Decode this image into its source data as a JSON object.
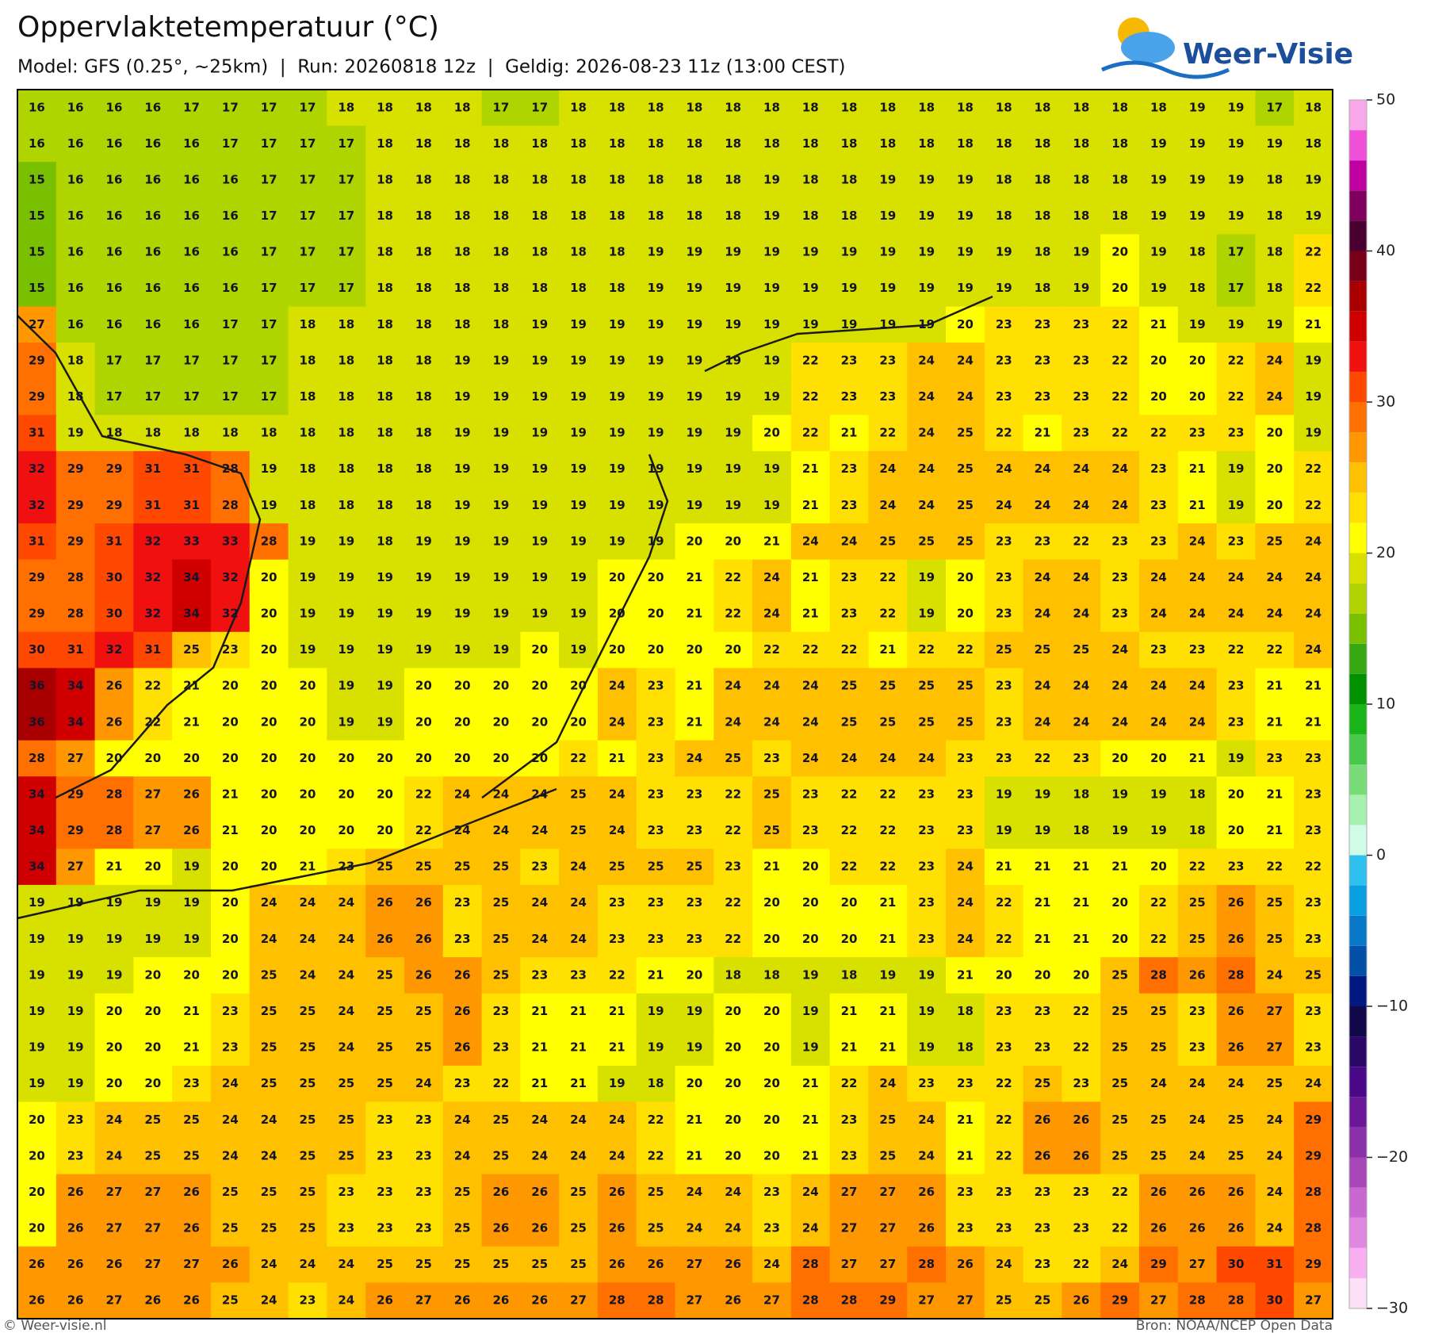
{
  "chart_data": {
    "type": "heatmap",
    "title": "Oppervlaktetemperatuur (°C)",
    "subtitle": "Model: GFS (0.25°, ~25km)  |  Run: 20260818 12z  |  Geldig: 2026-08-23 11z (13:00 CEST)",
    "logo": "Weer-Visie",
    "source_left": "© Weer-visie.nl",
    "source_right": "Bron: NOAA/NCEP Open Data",
    "values": [
      [
        16,
        16,
        16,
        16,
        17,
        17,
        17,
        17,
        18,
        18,
        18,
        18,
        17,
        17,
        18,
        18,
        18,
        18,
        18,
        18,
        18,
        18,
        18,
        18,
        18,
        18,
        18,
        18,
        18,
        18,
        19,
        19,
        17,
        18
      ],
      [
        16,
        16,
        16,
        16,
        16,
        17,
        17,
        17,
        17,
        18,
        18,
        18,
        18,
        18,
        18,
        18,
        18,
        18,
        18,
        18,
        18,
        18,
        18,
        18,
        18,
        18,
        18,
        18,
        18,
        19,
        19,
        19,
        19,
        18
      ],
      [
        15,
        16,
        16,
        16,
        16,
        16,
        17,
        17,
        17,
        18,
        18,
        18,
        18,
        18,
        18,
        18,
        18,
        18,
        18,
        19,
        18,
        18,
        19,
        19,
        19,
        18,
        18,
        18,
        18,
        19,
        19,
        19,
        18,
        19
      ],
      [
        15,
        16,
        16,
        16,
        16,
        16,
        17,
        17,
        17,
        18,
        18,
        18,
        18,
        18,
        18,
        18,
        18,
        18,
        18,
        19,
        18,
        18,
        19,
        19,
        19,
        18,
        18,
        18,
        18,
        19,
        19,
        19,
        18,
        19
      ],
      [
        15,
        16,
        16,
        16,
        16,
        16,
        17,
        17,
        17,
        18,
        18,
        18,
        18,
        18,
        18,
        18,
        19,
        19,
        19,
        19,
        19,
        19,
        19,
        19,
        19,
        19,
        18,
        19,
        20,
        19,
        18,
        17,
        18,
        22
      ],
      [
        15,
        16,
        16,
        16,
        16,
        16,
        17,
        17,
        17,
        18,
        18,
        18,
        18,
        18,
        18,
        18,
        19,
        19,
        19,
        19,
        19,
        19,
        19,
        19,
        19,
        19,
        18,
        19,
        20,
        19,
        18,
        17,
        18,
        22
      ],
      [
        27,
        16,
        16,
        16,
        16,
        17,
        17,
        18,
        18,
        18,
        18,
        18,
        18,
        19,
        19,
        19,
        19,
        19,
        19,
        19,
        19,
        19,
        19,
        19,
        20,
        23,
        23,
        23,
        22,
        21,
        19,
        19,
        19,
        21
      ],
      [
        29,
        18,
        17,
        17,
        17,
        17,
        17,
        18,
        18,
        18,
        18,
        19,
        19,
        19,
        19,
        19,
        19,
        19,
        19,
        19,
        22,
        23,
        23,
        24,
        24,
        23,
        23,
        23,
        22,
        20,
        20,
        22,
        24,
        19
      ],
      [
        29,
        18,
        17,
        17,
        17,
        17,
        17,
        18,
        18,
        18,
        18,
        19,
        19,
        19,
        19,
        19,
        19,
        19,
        19,
        19,
        22,
        23,
        23,
        24,
        24,
        23,
        23,
        23,
        22,
        20,
        20,
        22,
        24,
        19
      ],
      [
        31,
        19,
        18,
        18,
        18,
        18,
        18,
        18,
        18,
        18,
        18,
        19,
        19,
        19,
        19,
        19,
        19,
        19,
        19,
        20,
        22,
        21,
        22,
        24,
        25,
        22,
        21,
        23,
        22,
        22,
        23,
        23,
        20,
        19
      ],
      [
        32,
        29,
        29,
        31,
        31,
        28,
        19,
        18,
        18,
        18,
        18,
        19,
        19,
        19,
        19,
        19,
        19,
        19,
        19,
        19,
        21,
        23,
        24,
        24,
        25,
        24,
        24,
        24,
        24,
        23,
        21,
        19,
        20,
        22
      ],
      [
        32,
        29,
        29,
        31,
        31,
        28,
        19,
        18,
        18,
        18,
        18,
        19,
        19,
        19,
        19,
        19,
        19,
        19,
        19,
        19,
        21,
        23,
        24,
        24,
        25,
        24,
        24,
        24,
        24,
        23,
        21,
        19,
        20,
        22
      ],
      [
        31,
        29,
        31,
        32,
        33,
        33,
        28,
        19,
        19,
        18,
        19,
        19,
        19,
        19,
        19,
        19,
        19,
        20,
        20,
        21,
        24,
        24,
        25,
        25,
        25,
        23,
        23,
        22,
        23,
        23,
        24,
        23,
        25,
        24
      ],
      [
        29,
        28,
        30,
        32,
        34,
        32,
        20,
        19,
        19,
        19,
        19,
        19,
        19,
        19,
        19,
        20,
        20,
        21,
        22,
        24,
        21,
        23,
        22,
        19,
        20,
        23,
        24,
        24,
        23,
        24,
        24,
        24,
        24,
        24
      ],
      [
        29,
        28,
        30,
        32,
        34,
        32,
        20,
        19,
        19,
        19,
        19,
        19,
        19,
        19,
        19,
        20,
        20,
        21,
        22,
        24,
        21,
        23,
        22,
        19,
        20,
        23,
        24,
        24,
        23,
        24,
        24,
        24,
        24,
        24
      ],
      [
        30,
        31,
        32,
        31,
        25,
        23,
        20,
        19,
        19,
        19,
        19,
        19,
        19,
        20,
        19,
        20,
        20,
        20,
        20,
        22,
        22,
        22,
        21,
        22,
        22,
        25,
        25,
        25,
        24,
        23,
        23,
        22,
        22,
        24
      ],
      [
        36,
        34,
        26,
        22,
        21,
        20,
        20,
        20,
        19,
        19,
        20,
        20,
        20,
        20,
        20,
        24,
        23,
        21,
        24,
        24,
        24,
        25,
        25,
        25,
        25,
        23,
        24,
        24,
        24,
        24,
        24,
        23,
        21,
        21
      ],
      [
        36,
        34,
        26,
        22,
        21,
        20,
        20,
        20,
        19,
        19,
        20,
        20,
        20,
        20,
        20,
        24,
        23,
        21,
        24,
        24,
        24,
        25,
        25,
        25,
        25,
        23,
        24,
        24,
        24,
        24,
        24,
        23,
        21,
        21
      ],
      [
        28,
        27,
        20,
        20,
        20,
        20,
        20,
        20,
        20,
        20,
        20,
        20,
        20,
        20,
        22,
        21,
        23,
        24,
        25,
        23,
        24,
        24,
        24,
        24,
        23,
        23,
        22,
        23,
        20,
        20,
        21,
        19,
        23,
        23
      ],
      [
        34,
        29,
        28,
        27,
        26,
        21,
        20,
        20,
        20,
        20,
        22,
        24,
        24,
        24,
        25,
        24,
        23,
        23,
        22,
        25,
        23,
        22,
        22,
        23,
        23,
        19,
        19,
        18,
        19,
        19,
        18,
        20,
        21,
        23
      ],
      [
        34,
        29,
        28,
        27,
        26,
        21,
        20,
        20,
        20,
        20,
        22,
        24,
        24,
        24,
        25,
        24,
        23,
        23,
        22,
        25,
        23,
        22,
        22,
        23,
        23,
        19,
        19,
        18,
        19,
        19,
        18,
        20,
        21,
        23
      ],
      [
        34,
        27,
        21,
        20,
        19,
        20,
        20,
        21,
        23,
        25,
        25,
        25,
        25,
        23,
        24,
        25,
        25,
        25,
        23,
        21,
        20,
        22,
        22,
        23,
        24,
        21,
        21,
        21,
        21,
        20,
        22,
        23,
        22,
        22
      ],
      [
        19,
        19,
        19,
        19,
        19,
        20,
        24,
        24,
        24,
        26,
        26,
        23,
        25,
        24,
        24,
        23,
        23,
        23,
        22,
        20,
        20,
        20,
        21,
        23,
        24,
        22,
        21,
        21,
        20,
        22,
        25,
        26,
        25,
        23
      ],
      [
        19,
        19,
        19,
        19,
        19,
        20,
        24,
        24,
        24,
        26,
        26,
        23,
        25,
        24,
        24,
        23,
        23,
        23,
        22,
        20,
        20,
        20,
        21,
        23,
        24,
        22,
        21,
        21,
        20,
        22,
        25,
        26,
        25,
        23
      ],
      [
        19,
        19,
        19,
        20,
        20,
        20,
        25,
        24,
        24,
        25,
        26,
        26,
        25,
        23,
        23,
        22,
        21,
        20,
        18,
        18,
        19,
        18,
        19,
        19,
        21,
        20,
        20,
        20,
        25,
        28,
        26,
        28,
        24,
        25
      ],
      [
        19,
        19,
        20,
        20,
        21,
        23,
        25,
        25,
        24,
        25,
        25,
        26,
        23,
        21,
        21,
        21,
        19,
        19,
        20,
        20,
        19,
        21,
        21,
        19,
        18,
        23,
        23,
        22,
        25,
        25,
        23,
        26,
        27,
        23
      ],
      [
        19,
        19,
        20,
        20,
        21,
        23,
        25,
        25,
        24,
        25,
        25,
        26,
        23,
        21,
        21,
        21,
        19,
        19,
        20,
        20,
        19,
        21,
        21,
        19,
        18,
        23,
        23,
        22,
        25,
        25,
        23,
        26,
        27,
        23
      ],
      [
        19,
        19,
        20,
        20,
        23,
        24,
        25,
        25,
        25,
        25,
        24,
        23,
        22,
        21,
        21,
        19,
        18,
        20,
        20,
        20,
        21,
        22,
        24,
        23,
        23,
        22,
        25,
        23,
        25,
        24,
        24,
        24,
        25,
        24
      ],
      [
        20,
        23,
        24,
        25,
        25,
        24,
        24,
        25,
        25,
        23,
        23,
        24,
        25,
        24,
        24,
        24,
        22,
        21,
        20,
        20,
        21,
        23,
        25,
        24,
        21,
        22,
        26,
        26,
        25,
        25,
        24,
        25,
        24,
        29
      ],
      [
        20,
        23,
        24,
        25,
        25,
        24,
        24,
        25,
        25,
        23,
        23,
        24,
        25,
        24,
        24,
        24,
        22,
        21,
        20,
        20,
        21,
        23,
        25,
        24,
        21,
        22,
        26,
        26,
        25,
        25,
        24,
        25,
        24,
        29
      ],
      [
        20,
        26,
        27,
        27,
        26,
        25,
        25,
        25,
        23,
        23,
        23,
        25,
        26,
        26,
        25,
        26,
        25,
        24,
        24,
        23,
        24,
        27,
        27,
        26,
        23,
        23,
        23,
        23,
        22,
        26,
        26,
        26,
        24,
        28
      ],
      [
        20,
        26,
        27,
        27,
        26,
        25,
        25,
        25,
        23,
        23,
        23,
        25,
        26,
        26,
        25,
        26,
        25,
        24,
        24,
        23,
        24,
        27,
        27,
        26,
        23,
        23,
        23,
        23,
        22,
        26,
        26,
        26,
        24,
        28
      ],
      [
        26,
        26,
        26,
        27,
        27,
        26,
        24,
        24,
        24,
        25,
        25,
        25,
        25,
        25,
        25,
        26,
        26,
        27,
        26,
        24,
        28,
        27,
        27,
        28,
        26,
        24,
        23,
        22,
        24,
        29,
        27,
        30,
        31,
        29
      ],
      [
        26,
        26,
        27,
        26,
        26,
        25,
        24,
        23,
        24,
        26,
        27,
        26,
        26,
        26,
        27,
        28,
        28,
        27,
        26,
        27,
        28,
        28,
        29,
        27,
        27,
        25,
        25,
        26,
        29,
        27,
        28,
        28,
        30,
        27
      ]
    ],
    "colorbar": {
      "levels": [
        -30,
        -28,
        -26,
        -24,
        -22,
        -20,
        -18,
        -16,
        -14,
        -12,
        -10,
        -8,
        -6,
        -4,
        -2,
        0,
        2,
        4,
        6,
        8,
        10,
        12,
        14,
        16,
        18,
        20,
        22,
        24,
        26,
        28,
        30,
        32,
        34,
        36,
        38,
        40,
        42,
        44,
        46,
        48,
        50
      ],
      "colors": [
        "#fde0f8",
        "#f8b0f0",
        "#e088e0",
        "#c868d0",
        "#a848b8",
        "#8a30a8",
        "#6a1898",
        "#4a0888",
        "#2a0868",
        "#100848",
        "#001880",
        "#0450a8",
        "#0878c8",
        "#08a0e0",
        "#30c0f0",
        "#d0fce8",
        "#a8f0b0",
        "#78dc78",
        "#48c848",
        "#18b418",
        "#009000",
        "#38a810",
        "#78c000",
        "#b0d400",
        "#d8e000",
        "#ffff00",
        "#ffe000",
        "#ffc000",
        "#ff9800",
        "#ff7000",
        "#ff4800",
        "#f01010",
        "#d00000",
        "#a80000",
        "#780018",
        "#4a0030",
        "#800060",
        "#c000a0",
        "#f050d8",
        "#f8a8e8"
      ],
      "ticks": [
        {
          "value": -30,
          "label": "−30"
        },
        {
          "value": -20,
          "label": "−20"
        },
        {
          "value": -10,
          "label": "−10"
        },
        0,
        10,
        20,
        30,
        40,
        50
      ]
    }
  }
}
